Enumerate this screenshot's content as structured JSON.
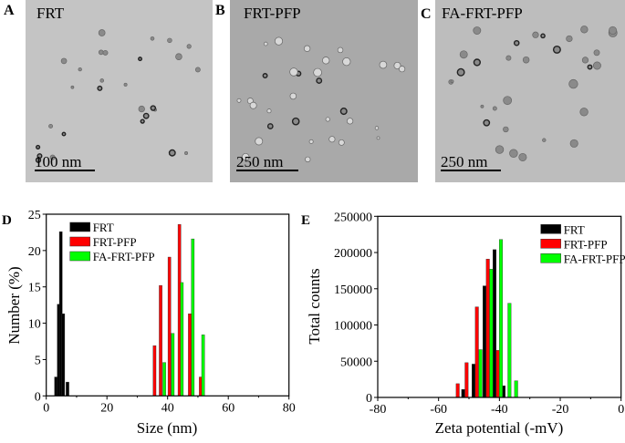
{
  "panels": [
    {
      "letter": "A",
      "title": "FRT",
      "scale_bar": "100 nm",
      "bg": "#c4c4c4"
    },
    {
      "letter": "B",
      "title": "FRT-PFP",
      "scale_bar": "250 nm",
      "bg": "#a9a9a9"
    },
    {
      "letter": "C",
      "title": "FA-FRT-PFP",
      "scale_bar": "250 nm",
      "bg": "#bdbdbd"
    }
  ],
  "chart_data": [
    {
      "panel": "D",
      "type": "bar",
      "xlabel": "Size (nm)",
      "ylabel": "Number (%)",
      "xlim": [
        0,
        80
      ],
      "ylim": [
        0,
        25
      ],
      "xticks": [
        "0",
        "20",
        "40",
        "60",
        "80"
      ],
      "yticks": [
        "0",
        "5",
        "10",
        "15",
        "20",
        "25"
      ],
      "legend": "top-left",
      "grid": false,
      "series": [
        {
          "name": "FRT",
          "color": "#000000",
          "x": [
            3.2,
            4.1,
            4.8,
            5.6,
            7.0
          ],
          "values": [
            2.6,
            12.6,
            22.6,
            11.3,
            1.9
          ]
        },
        {
          "name": "FRT-PFP",
          "color": "#ff0000",
          "x": [
            35.7,
            37.7,
            40.6,
            43.9,
            47.3,
            50.9
          ],
          "values": [
            6.9,
            15.2,
            19.1,
            23.6,
            11.3,
            2.6
          ]
        },
        {
          "name": "FA-FRT-PFP",
          "color": "#00ff00",
          "x": [
            38.9,
            41.7,
            44.7,
            48.3,
            51.7
          ],
          "values": [
            4.6,
            8.6,
            15.6,
            21.6,
            8.4
          ]
        }
      ]
    },
    {
      "panel": "E",
      "type": "bar",
      "xlabel": "Zeta potential (-mV)",
      "ylabel": "Total counts",
      "xlim": [
        -80,
        0
      ],
      "ylim": [
        0,
        250000
      ],
      "xticks": [
        "-80",
        "-60",
        "-40",
        "-20",
        "0"
      ],
      "yticks": [
        "0",
        "50000",
        "100000",
        "150000",
        "200000",
        "250000"
      ],
      "legend": "top-right",
      "grid": false,
      "series": [
        {
          "name": "FRT",
          "color": "#000000",
          "x": [
            -51.9,
            -48.5,
            -44.9,
            -41.6,
            -38.6
          ],
          "values": [
            11000,
            46000,
            154000,
            204000,
            16000
          ]
        },
        {
          "name": "FRT-PFP",
          "color": "#ff0000",
          "x": [
            -53.7,
            -50.8,
            -47.4,
            -43.8,
            -40.5
          ],
          "values": [
            19000,
            48000,
            125000,
            191000,
            65000
          ]
        },
        {
          "name": "FA-FRT-PFP",
          "color": "#00ff00",
          "x": [
            -46.2,
            -42.7,
            -39.5,
            -36.7,
            -34.5
          ],
          "values": [
            66000,
            177000,
            218000,
            130000,
            23000
          ]
        }
      ]
    }
  ]
}
